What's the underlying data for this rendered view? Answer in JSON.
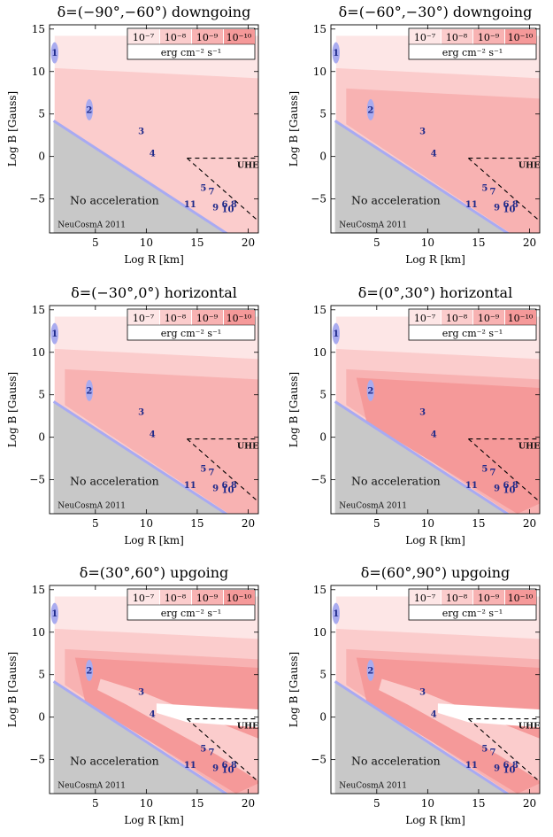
{
  "figure": {
    "x_label": "Log R [km]",
    "y_label": "Log B [Gauss]",
    "x_ticks": [
      "5",
      "10",
      "15",
      "20"
    ],
    "y_ticks": [
      "15",
      "10",
      "5",
      "0",
      "−5"
    ],
    "no_acceleration_label": "No acceleration",
    "credit": "NeuCosmA 2011",
    "uhecr_label": "UHECR",
    "legend": {
      "levels": [
        "10⁻⁷",
        "10⁻⁸",
        "10⁻⁹",
        "10⁻¹⁰"
      ],
      "unit": "erg cm⁻² s⁻¹",
      "colors": [
        "#fde6e6",
        "#fbcccc",
        "#f8b2b2",
        "#f59999"
      ]
    },
    "colors": {
      "no_accel_fill": "#c8c8c8",
      "boundary_line": "#a8aaf2",
      "source_marker": "#a9abef",
      "source_text": "#1f2a8a"
    }
  },
  "chart_data": [
    {
      "type": "heatmap",
      "title": "δ=(−90°,−60°) downgoing",
      "xlabel": "Log R [km]",
      "ylabel": "Log B [Gauss]",
      "xlim": [
        0.5,
        21
      ],
      "ylim": [
        -9,
        15.5
      ],
      "max_level": 2
    },
    {
      "type": "heatmap",
      "title": "δ=(−60°,−30°) downgoing",
      "xlabel": "Log R [km]",
      "ylabel": "Log B [Gauss]",
      "xlim": [
        0.5,
        21
      ],
      "ylim": [
        -9,
        15.5
      ],
      "max_level": 3
    },
    {
      "type": "heatmap",
      "title": "δ=(−30°,0°) horizontal",
      "xlabel": "Log R [km]",
      "ylabel": "Log B [Gauss]",
      "xlim": [
        0.5,
        21
      ],
      "ylim": [
        -9,
        15.5
      ],
      "max_level": 3
    },
    {
      "type": "heatmap",
      "title": "δ=(0°,30°) horizontal",
      "xlabel": "Log R [km]",
      "ylabel": "Log B [Gauss]",
      "xlim": [
        0.5,
        21
      ],
      "ylim": [
        -9,
        15.5
      ],
      "max_level": 4
    },
    {
      "type": "heatmap",
      "title": "δ=(30°,60°) upgoing",
      "xlabel": "Log R [km]",
      "ylabel": "Log B [Gauss]",
      "xlim": [
        0.5,
        21
      ],
      "ylim": [
        -9,
        15.5
      ],
      "max_level": 4
    },
    {
      "type": "heatmap",
      "title": "δ=(60°,90°) upgoing",
      "xlabel": "Log R [km]",
      "ylabel": "Log B [Gauss]",
      "xlim": [
        0.5,
        21
      ],
      "ylim": [
        -9,
        15.5
      ],
      "max_level": 4
    }
  ],
  "sources": [
    {
      "id": "1",
      "x": 1.0,
      "y": 12.2,
      "ellipse": true
    },
    {
      "id": "2",
      "x": 4.4,
      "y": 5.5,
      "ellipse": true
    },
    {
      "id": "3",
      "x": 9.5,
      "y": 3.0,
      "ellipse": false
    },
    {
      "id": "4",
      "x": 10.6,
      "y": 0.4,
      "ellipse": false
    },
    {
      "id": "5",
      "x": 15.6,
      "y": -3.7,
      "ellipse": false
    },
    {
      "id": "7",
      "x": 16.4,
      "y": -4.1,
      "ellipse": false
    },
    {
      "id": "9",
      "x": 16.8,
      "y": -6.0,
      "ellipse": false
    },
    {
      "id": "6",
      "x": 17.7,
      "y": -5.6,
      "ellipse": false
    },
    {
      "id": "10",
      "x": 18.0,
      "y": -6.2,
      "ellipse": false
    },
    {
      "id": "8",
      "x": 18.6,
      "y": -5.6,
      "ellipse": false
    },
    {
      "id": "11",
      "x": 14.3,
      "y": -5.6,
      "ellipse": false
    }
  ]
}
